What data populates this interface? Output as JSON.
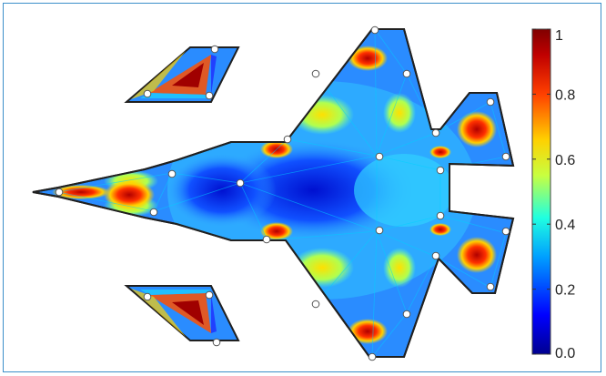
{
  "colorbar": {
    "tick_labels": [
      "0.0",
      "0.2",
      "0.4",
      "0.6",
      "0.8",
      "1"
    ],
    "tick_values": [
      0.0,
      0.2,
      0.4,
      0.6,
      0.8,
      1.0
    ],
    "range": [
      0.0,
      1.0
    ],
    "colormap_stops": [
      "#00008f",
      "#0000ff",
      "#00a0ff",
      "#20ffe0",
      "#c8ff40",
      "#ffd000",
      "#ff4000",
      "#c00000",
      "#800000"
    ]
  },
  "colors": {
    "frame_border": "#3c8fc9",
    "node_fill": "#ffffff",
    "mesh_outline": "#202020"
  }
}
